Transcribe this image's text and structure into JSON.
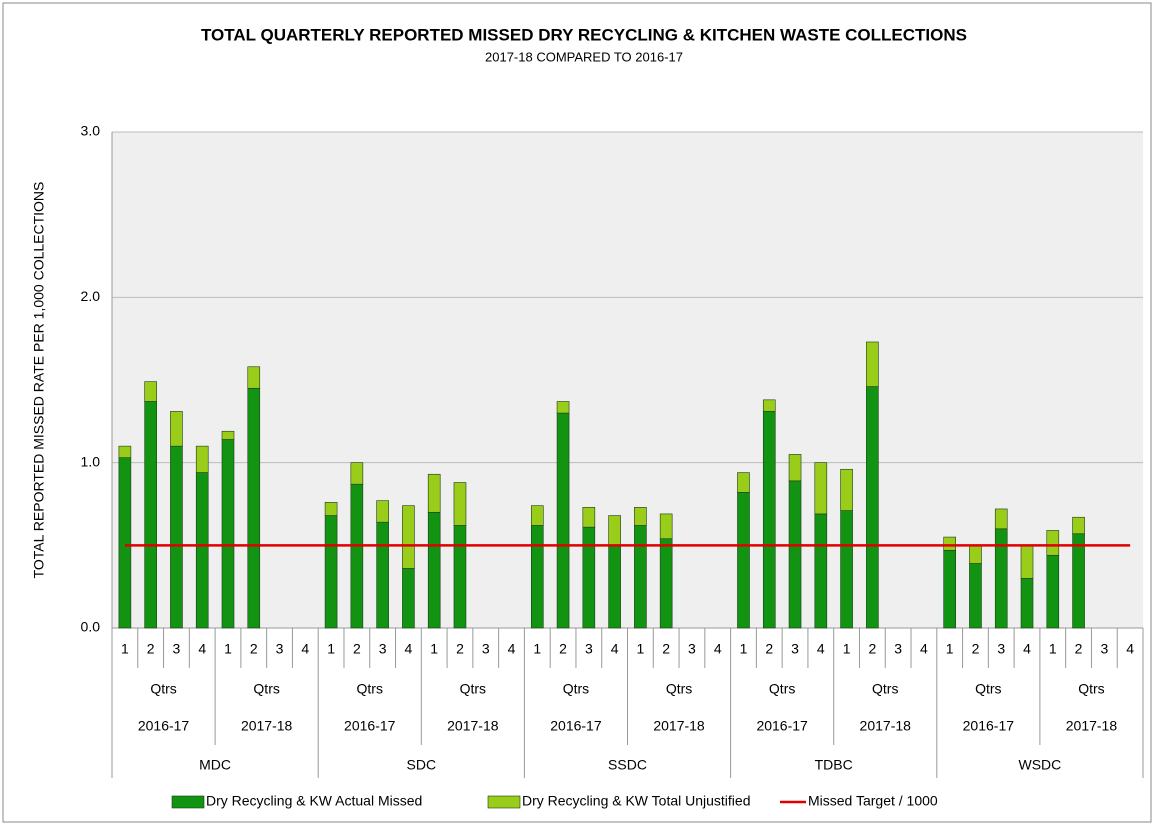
{
  "chart_data": {
    "type": "stacked_bar",
    "title": "TOTAL QUARTERLY REPORTED MISSED DRY RECYCLING & KITCHEN WASTE COLLECTIONS",
    "subtitle": "2017-18 COMPARED TO 2016-17",
    "y_label": "TOTAL REPORTED MISSED RATE PER 1,000 COLLECTIONS",
    "categories": [
      "1",
      "2",
      "3",
      "4",
      "1",
      "2",
      "3",
      "4",
      "1",
      "2",
      "3",
      "4",
      "1",
      "2",
      "3",
      "4",
      "1",
      "2",
      "3",
      "4",
      "1",
      "2",
      "3",
      "4",
      "1",
      "2",
      "3",
      "4",
      "1",
      "2",
      "3",
      "4",
      "1",
      "2",
      "3",
      "4",
      "1",
      "2",
      "3",
      "4"
    ],
    "years": [
      {
        "unit": "Qtrs",
        "label": "2016-17"
      },
      {
        "unit": "Qtrs",
        "label": "2017-18"
      },
      {
        "unit": "Qtrs",
        "label": "2016-17"
      },
      {
        "unit": "Qtrs",
        "label": "2017-18"
      },
      {
        "unit": "Qtrs",
        "label": "2016-17"
      },
      {
        "unit": "Qtrs",
        "label": "2017-18"
      },
      {
        "unit": "Qtrs",
        "label": "2016-17"
      },
      {
        "unit": "Qtrs",
        "label": "2017-18"
      },
      {
        "unit": "Qtrs",
        "label": "2016-17"
      },
      {
        "unit": "Qtrs",
        "label": "2017-18"
      }
    ],
    "councils": [
      "MDC",
      "SDC",
      "SSDC",
      "TDBC",
      "WSDC"
    ],
    "series": [
      {
        "name": "Dry Recycling & KW Actual Missed",
        "color": "#129412",
        "values": [
          1.03,
          1.37,
          1.1,
          0.94,
          1.14,
          1.45,
          null,
          null,
          0.68,
          0.87,
          0.64,
          0.36,
          0.7,
          0.62,
          null,
          null,
          0.62,
          1.3,
          0.61,
          0.5,
          0.62,
          0.54,
          null,
          null,
          0.82,
          1.31,
          0.89,
          0.69,
          0.71,
          1.46,
          null,
          null,
          0.47,
          0.39,
          0.6,
          0.3,
          0.44,
          0.57,
          null,
          null
        ]
      },
      {
        "name": "Dry Recycling & KW Total Unjustified",
        "color": "#9acd1a",
        "values": [
          0.07,
          0.12,
          0.21,
          0.16,
          0.05,
          0.13,
          null,
          null,
          0.08,
          0.13,
          0.13,
          0.38,
          0.23,
          0.26,
          null,
          null,
          0.12,
          0.07,
          0.12,
          0.18,
          0.11,
          0.15,
          null,
          null,
          0.12,
          0.07,
          0.16,
          0.31,
          0.25,
          0.27,
          null,
          null,
          0.08,
          0.11,
          0.12,
          0.2,
          0.15,
          0.1,
          null,
          null
        ]
      },
      {
        "name": "Missed Target / 1000",
        "color": "#e00000",
        "kind": "line",
        "values": [
          0.5,
          0.5,
          0.5,
          0.5,
          0.5,
          0.5,
          0.5,
          0.5,
          0.5,
          0.5,
          0.5,
          0.5,
          0.5,
          0.5,
          0.5,
          0.5,
          0.5,
          0.5,
          0.5,
          0.5,
          0.5,
          0.5,
          0.5,
          0.5,
          0.5,
          0.5,
          0.5,
          0.5,
          0.5,
          0.5,
          0.5,
          0.5,
          0.5,
          0.5,
          0.5,
          0.5,
          0.5,
          0.5,
          0.5,
          0.5
        ]
      }
    ],
    "ylim": [
      0,
      3
    ],
    "yticks": [
      {
        "value": 0,
        "label": "0.0"
      },
      {
        "value": 1,
        "label": "1.0"
      },
      {
        "value": 2,
        "label": "2.0"
      },
      {
        "value": 3,
        "label": "3.0"
      }
    ],
    "grid": true,
    "legend": "bottom"
  }
}
